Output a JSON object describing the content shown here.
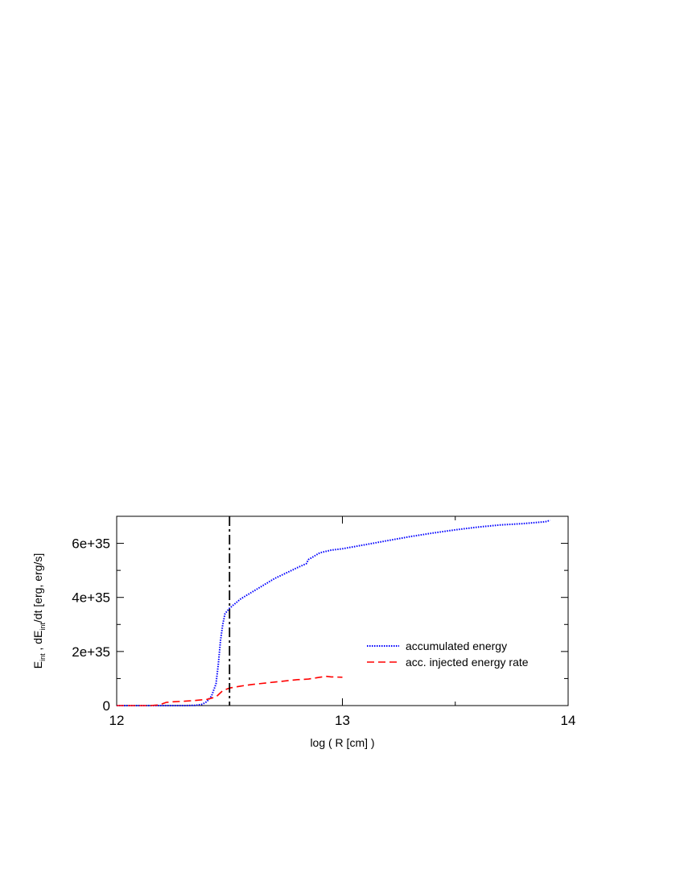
{
  "chart_data": {
    "type": "line",
    "xlabel": "log ( R [cm] )",
    "ylabel": {
      "parts": [
        "E",
        "int",
        " , dE",
        "int",
        "/dt [erg, erg/s]"
      ]
    },
    "xlim": [
      12,
      14
    ],
    "ylim": [
      0,
      7e+35
    ],
    "xticks": [
      {
        "value": 12,
        "label": "12"
      },
      {
        "value": 13,
        "label": "13"
      },
      {
        "value": 14,
        "label": "14"
      }
    ],
    "yticks": [
      {
        "value": 0,
        "label": "0"
      },
      {
        "value": 2e+35,
        "label": "2e+35"
      },
      {
        "value": 4e+35,
        "label": "4e+35"
      },
      {
        "value": 6e+35,
        "label": "6e+35"
      }
    ],
    "x_minor_step": 0.5,
    "y_minor_step": 1e+35,
    "grid": false,
    "legend_position": "center-right",
    "vertical_line": {
      "x": 12.5,
      "style": "dash-dot",
      "color": "#000000"
    },
    "series": [
      {
        "name": "accumulated energy",
        "style": "dotted",
        "color": "#0000ff",
        "x": [
          12.0,
          12.1,
          12.2,
          12.3,
          12.35,
          12.38,
          12.4,
          12.42,
          12.44,
          12.45,
          12.46,
          12.47,
          12.48,
          12.5,
          12.55,
          12.6,
          12.65,
          12.7,
          12.75,
          12.8,
          12.84,
          12.85,
          12.88,
          12.9,
          12.95,
          13.0,
          13.1,
          13.2,
          13.3,
          13.4,
          13.5,
          13.6,
          13.7,
          13.8,
          13.9,
          13.92
        ],
        "y": [
          0,
          0,
          0,
          1e+32,
          1e+33,
          5e+33,
          1.5e+34,
          3.5e+34,
          8e+34,
          1.5e+35,
          2.4e+35,
          3e+35,
          3.4e+35,
          3.6e+35,
          3.95e+35,
          4.2e+35,
          4.45e+35,
          4.7e+35,
          4.9e+35,
          5.1e+35,
          5.25e+35,
          5.4e+35,
          5.55e+35,
          5.65e+35,
          5.75e+35,
          5.8e+35,
          5.95e+35,
          6.1e+35,
          6.25e+35,
          6.38e+35,
          6.5e+35,
          6.6e+35,
          6.68e+35,
          6.73e+35,
          6.8e+35,
          6.85e+35
        ]
      },
      {
        "name": "acc. injected energy rate",
        "style": "dashed",
        "color": "#ff0000",
        "x": [
          12.0,
          12.15,
          12.18,
          12.2,
          12.22,
          12.25,
          12.3,
          12.35,
          12.4,
          12.44,
          12.47,
          12.5,
          12.55,
          12.6,
          12.7,
          12.8,
          12.85,
          12.9,
          12.93,
          12.95,
          13.0
        ],
        "y": [
          0,
          0,
          2e+33,
          6e+33,
          1.2e+34,
          1.4e+34,
          1.6e+34,
          1.9e+34,
          2.3e+34,
          3.2e+34,
          5.5e+34,
          6.5e+34,
          7.2e+34,
          7.8e+34,
          8.7e+34,
          9.6e+34,
          9.8e+34,
          1.05e+35,
          1.08e+35,
          1.06e+35,
          1.05e+35
        ]
      }
    ]
  }
}
